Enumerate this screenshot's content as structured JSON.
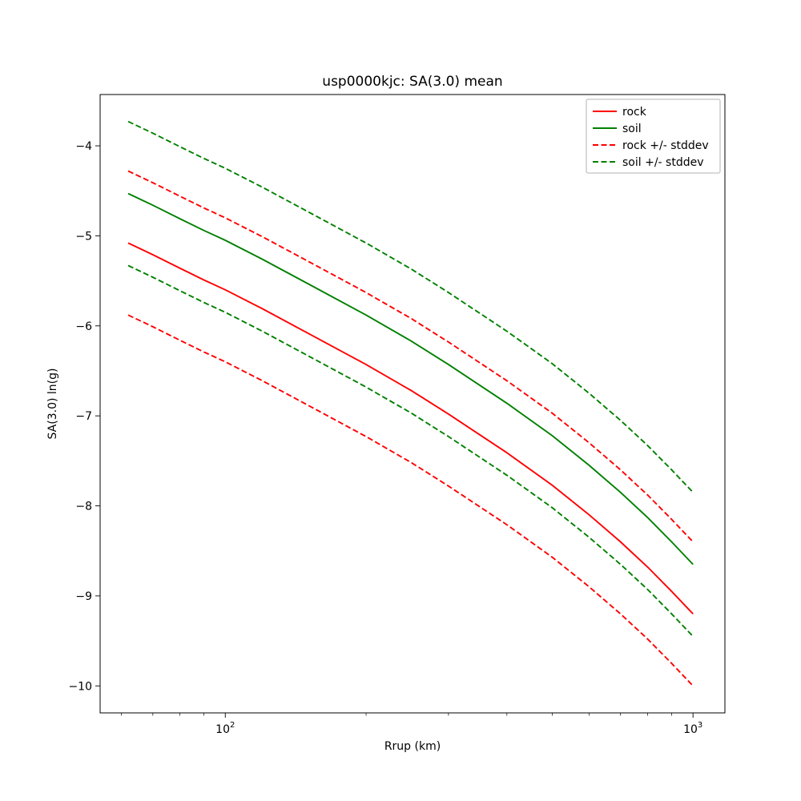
{
  "chart_data": {
    "type": "line",
    "title": "usp0000kjc: SA(3.0) mean",
    "xlabel": "Rrup (km)",
    "ylabel": "SA(3.0) ln(g)",
    "x_scale": "log",
    "grid": false,
    "xlim": [
      54,
      1170
    ],
    "ylim": [
      -10.3,
      -3.43
    ],
    "x": [
      62,
      70,
      80,
      90,
      100,
      120,
      150,
      200,
      250,
      300,
      400,
      500,
      600,
      700,
      800,
      900,
      1000
    ],
    "series": [
      {
        "name": "rock",
        "color": "#ff0000",
        "style": "solid",
        "values": [
          -5.08,
          -5.21,
          -5.36,
          -5.49,
          -5.6,
          -5.81,
          -6.08,
          -6.43,
          -6.72,
          -6.98,
          -7.41,
          -7.77,
          -8.1,
          -8.4,
          -8.68,
          -8.95,
          -9.2
        ]
      },
      {
        "name": "soil",
        "color": "#008000",
        "style": "solid",
        "values": [
          -4.53,
          -4.66,
          -4.81,
          -4.94,
          -5.05,
          -5.26,
          -5.53,
          -5.88,
          -6.17,
          -6.43,
          -6.86,
          -7.22,
          -7.55,
          -7.85,
          -8.13,
          -8.4,
          -8.65
        ]
      },
      {
        "name": "rock +/- stddev",
        "color": "#ff0000",
        "style": "dashed",
        "band_of": "rock",
        "stddev": 0.8
      },
      {
        "name": "soil +/- stddev",
        "color": "#008000",
        "style": "dashed",
        "band_of": "soil",
        "stddev": 0.8
      }
    ],
    "x_ticks": [
      {
        "value": 100,
        "mantissa": "10",
        "exponent": "2"
      },
      {
        "value": 1000,
        "mantissa": "10",
        "exponent": "3"
      }
    ],
    "x_minor_ticks": [
      60,
      70,
      80,
      90,
      200,
      300,
      400,
      500,
      600,
      700,
      800,
      900
    ],
    "y_ticks": [
      {
        "value": -4,
        "label": "−4"
      },
      {
        "value": -5,
        "label": "−5"
      },
      {
        "value": -6,
        "label": "−6"
      },
      {
        "value": -7,
        "label": "−7"
      },
      {
        "value": -8,
        "label": "−8"
      },
      {
        "value": -9,
        "label": "−9"
      },
      {
        "value": -10,
        "label": "−10"
      }
    ],
    "legend": {
      "position": "upper right",
      "entries": [
        "rock",
        "soil",
        "rock +/- stddev",
        "soil +/- stddev"
      ]
    }
  }
}
